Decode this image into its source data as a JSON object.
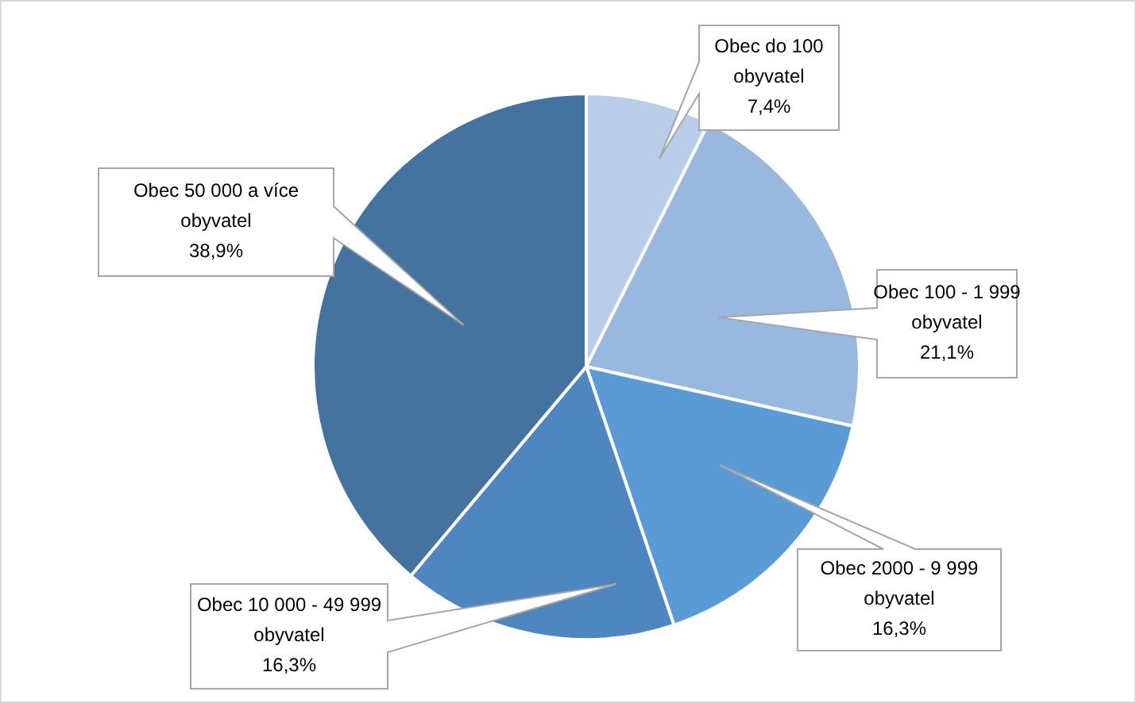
{
  "chart_data": {
    "type": "pie",
    "categories": [
      "Obec do 100 obyvatel",
      "Obec 100 - 1 999 obyvatel",
      "Obec 2000 - 9 999 obyvatel",
      "Obec 10 000 - 49 999 obyvatel",
      "Obec 50 000 a více obyvatel"
    ],
    "values": [
      7.4,
      21.1,
      16.3,
      16.3,
      38.9
    ],
    "value_labels": [
      "7,4%",
      "21,1%",
      "16,3%",
      "16,3%",
      "38,9%"
    ],
    "colors": [
      "#b9cde8",
      "#98b8df",
      "#5b9bd5",
      "#4e87c0",
      "#44739f"
    ]
  }
}
